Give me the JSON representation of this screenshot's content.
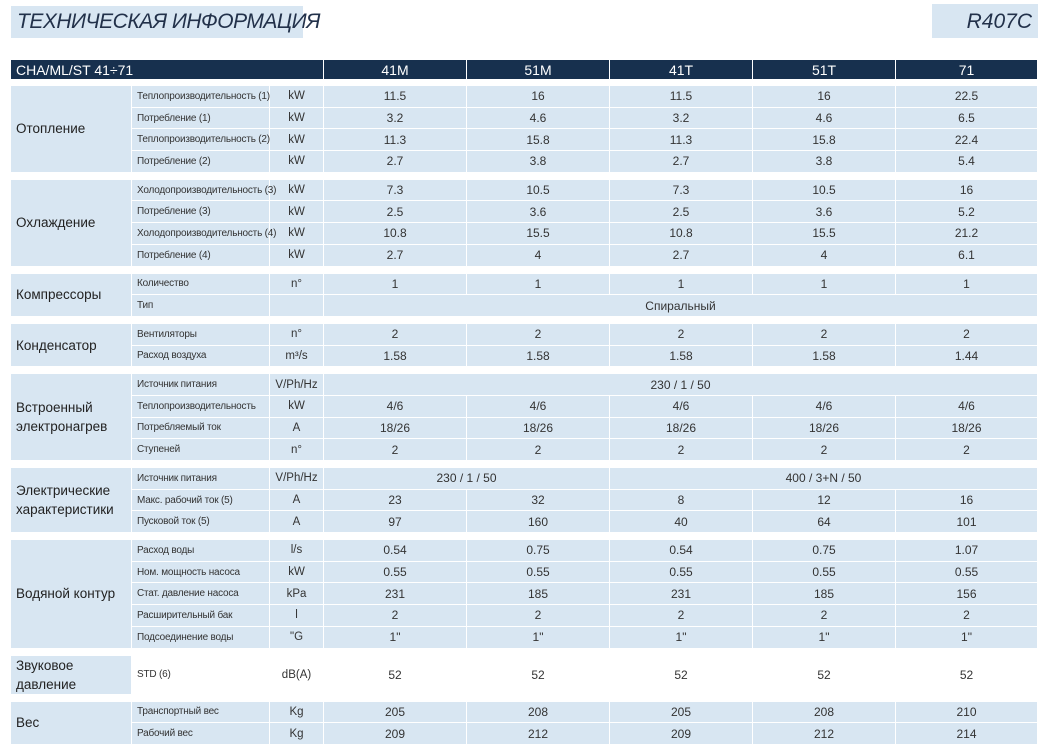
{
  "title": "ТЕХНИЧЕСКАЯ ИНФОРМАЦИЯ",
  "refrigerant": "R407C",
  "header": {
    "model_range": "CHA/ML/ST 41÷71",
    "models": [
      "41M",
      "51M",
      "41T",
      "51T",
      "71"
    ]
  },
  "sections": [
    {
      "name": "Отопление",
      "rows": [
        {
          "param": "Теплопроизводительность (1)",
          "unit": "kW",
          "values": [
            "11.5",
            "16",
            "11.5",
            "16",
            "22.5"
          ]
        },
        {
          "param": "Потребление (1)",
          "unit": "kW",
          "values": [
            "3.2",
            "4.6",
            "3.2",
            "4.6",
            "6.5"
          ]
        },
        {
          "param": "Теплопроизводительность (2)",
          "unit": "kW",
          "values": [
            "11.3",
            "15.8",
            "11.3",
            "15.8",
            "22.4"
          ]
        },
        {
          "param": "Потребление (2)",
          "unit": "kW",
          "values": [
            "2.7",
            "3.8",
            "2.7",
            "3.8",
            "5.4"
          ]
        }
      ]
    },
    {
      "name": "Охлаждение",
      "rows": [
        {
          "param": "Холодопроизводительность (3)",
          "unit": "kW",
          "values": [
            "7.3",
            "10.5",
            "7.3",
            "10.5",
            "16"
          ]
        },
        {
          "param": "Потребление (3)",
          "unit": "kW",
          "values": [
            "2.5",
            "3.6",
            "2.5",
            "3.6",
            "5.2"
          ]
        },
        {
          "param": "Холодопроизводительность (4)",
          "unit": "kW",
          "values": [
            "10.8",
            "15.5",
            "10.8",
            "15.5",
            "21.2"
          ]
        },
        {
          "param": "Потребление (4)",
          "unit": "kW",
          "values": [
            "2.7",
            "4",
            "2.7",
            "4",
            "6.1"
          ]
        }
      ]
    },
    {
      "name": "Компрессоры",
      "rows": [
        {
          "param": "Количество",
          "unit": "n°",
          "values": [
            "1",
            "1",
            "1",
            "1",
            "1"
          ]
        },
        {
          "param": "Тип",
          "unit": "",
          "merged": "Спиральный"
        }
      ]
    },
    {
      "name": "Конденсатор",
      "rows": [
        {
          "param": "Вентиляторы",
          "unit": "n°",
          "values": [
            "2",
            "2",
            "2",
            "2",
            "2"
          ]
        },
        {
          "param": "Расход воздуха",
          "unit": "m³/s",
          "values": [
            "1.58",
            "1.58",
            "1.58",
            "1.58",
            "1.44"
          ]
        }
      ]
    },
    {
      "name": "Встроенный электронагрев",
      "rows": [
        {
          "param": "Источник питания",
          "unit": "V/Ph/Hz",
          "merged": "230 / 1 / 50"
        },
        {
          "param": "Теплопроизводительность",
          "unit": "kW",
          "values": [
            "4/6",
            "4/6",
            "4/6",
            "4/6",
            "4/6"
          ]
        },
        {
          "param": "Потребляемый ток",
          "unit": "A",
          "values": [
            "18/26",
            "18/26",
            "18/26",
            "18/26",
            "18/26"
          ]
        },
        {
          "param": "Ступеней",
          "unit": "n°",
          "values": [
            "2",
            "2",
            "2",
            "2",
            "2"
          ]
        }
      ]
    },
    {
      "name": "Электрические характеристики",
      "rows": [
        {
          "param": "Источник питания",
          "unit": "V/Ph/Hz",
          "split": [
            "230 / 1 / 50",
            "400 / 3+N / 50"
          ]
        },
        {
          "param": "Макс. рабочий ток (5)",
          "unit": "A",
          "values": [
            "23",
            "32",
            "8",
            "12",
            "16"
          ]
        },
        {
          "param": "Пусковой ток (5)",
          "unit": "A",
          "values": [
            "97",
            "160",
            "40",
            "64",
            "101"
          ]
        }
      ]
    },
    {
      "name": "Водяной контур",
      "rows": [
        {
          "param": "Расход воды",
          "unit": "l/s",
          "values": [
            "0.54",
            "0.75",
            "0.54",
            "0.75",
            "1.07"
          ]
        },
        {
          "param": "Ном. мощность насоса",
          "unit": "kW",
          "values": [
            "0.55",
            "0.55",
            "0.55",
            "0.55",
            "0.55"
          ]
        },
        {
          "param": "Стат. давление насоса",
          "unit": "kPa",
          "values": [
            "231",
            "185",
            "231",
            "185",
            "156"
          ]
        },
        {
          "param": "Расширительный бак",
          "unit": "l",
          "values": [
            "2",
            "2",
            "2",
            "2",
            "2"
          ]
        },
        {
          "param": "Подсоединение воды",
          "unit": "\"G",
          "values": [
            "1\"",
            "1\"",
            "1\"",
            "1\"",
            "1\""
          ]
        }
      ]
    },
    {
      "name": "Звуковое давление",
      "plain": true,
      "rows": [
        {
          "param": "STD (6)",
          "unit": "dB(A)",
          "values": [
            "52",
            "52",
            "52",
            "52",
            "52"
          ]
        }
      ]
    },
    {
      "name": "Вес",
      "rows": [
        {
          "param": "Транспортный вес",
          "unit": "Kg",
          "values": [
            "205",
            "208",
            "205",
            "208",
            "210"
          ]
        },
        {
          "param": "Рабочий вес",
          "unit": "Kg",
          "values": [
            "209",
            "212",
            "209",
            "212",
            "214"
          ]
        }
      ]
    }
  ]
}
